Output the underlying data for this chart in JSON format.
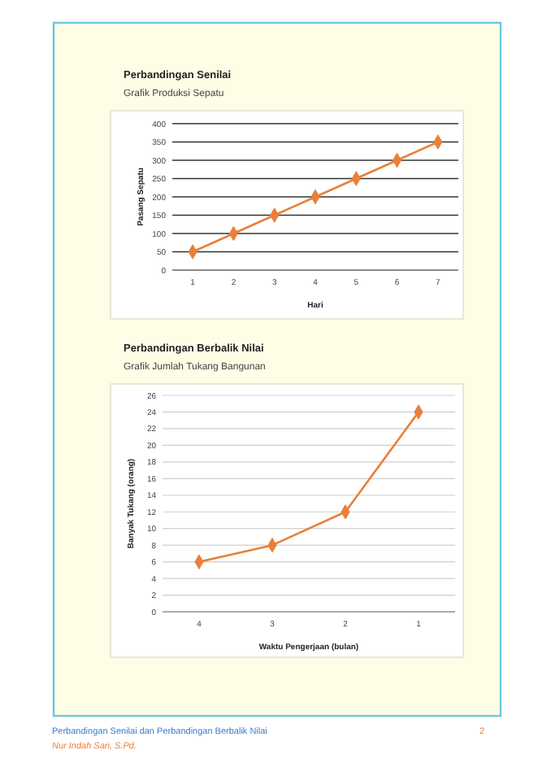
{
  "chart_data": [
    {
      "type": "line",
      "title": "Perbandingan Senilai",
      "subtitle": "Grafik Produksi Sepatu",
      "xlabel": "Hari",
      "ylabel": "Pasang Sepatu",
      "categories": [
        "1",
        "2",
        "3",
        "4",
        "5",
        "6",
        "7"
      ],
      "series": [
        {
          "color": "#e8803a",
          "values": [
            50,
            100,
            150,
            200,
            250,
            300,
            350
          ]
        }
      ],
      "ylim": [
        0,
        400
      ],
      "yticks": [
        0,
        50,
        100,
        150,
        200,
        250,
        300,
        350,
        400
      ],
      "grid": "y",
      "marker": "diamond",
      "line_style": "solid"
    },
    {
      "type": "line",
      "title": "Perbandingan Berbalik Nilai",
      "subtitle": "Grafik Jumlah Tukang Bangunan",
      "xlabel": "Waktu Pengerjaan (bulan)",
      "ylabel": "Banyak Tukang (orang)",
      "categories": [
        "4",
        "3",
        "2",
        "1"
      ],
      "series": [
        {
          "color": "#e8803a",
          "values": [
            6,
            8,
            12,
            24
          ]
        }
      ],
      "ylim": [
        0,
        26
      ],
      "yticks": [
        0,
        2,
        4,
        6,
        8,
        10,
        12,
        14,
        16,
        18,
        20,
        22,
        24,
        26
      ],
      "grid": "y",
      "marker": "diamond",
      "line_style": "solid",
      "annotations": [
        "Perbandingan Senilai dan Perbandingan Berbalik Nilai",
        "2",
        "Nur Indah Sari, S.Pd."
      ]
    }
  ]
}
